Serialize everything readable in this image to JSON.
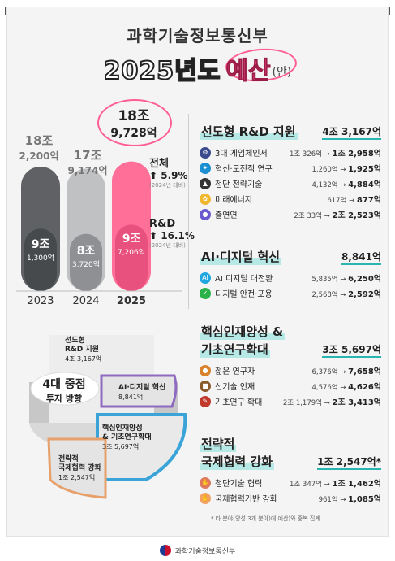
{
  "header": {
    "ministry": "과학기술정보통신부",
    "year_title": "2025년도",
    "budget_word": "예산",
    "draft": "(안)"
  },
  "chart_data": {
    "type": "bar",
    "categories": [
      "2023",
      "2024",
      "2025"
    ],
    "series": [
      {
        "values_label": [
          "18조 2,200억",
          "17조 9,174억",
          "18조 9,728억"
        ],
        "values": [
          18.22,
          17.9174,
          18.9728
        ]
      },
      {
        "values_label": [
          "9조 1,300억",
          "8조 3,720억",
          "9조 7,206억"
        ],
        "values": [
          9.13,
          8.372,
          9.7206
        ]
      }
    ],
    "colors": [
      "#5f6164",
      "#c0c1c3",
      "#ff6f98"
    ]
  },
  "bars": [
    {
      "year": "2023",
      "top1": "18조",
      "top2": "2,200억",
      "in1": "9조",
      "in2": "1,300억"
    },
    {
      "year": "2024",
      "top1": "17조",
      "top2": "9,174억",
      "in1": "8조",
      "in2": "3,720억"
    },
    {
      "year": "2025",
      "top1": "18조",
      "top2": "9,728억",
      "in1": "9조",
      "in2": "7,206억"
    }
  ],
  "growth": {
    "total_label": "전체",
    "total_pct": "5.9%",
    "total_sub": "(2024년 대비)",
    "rd_label": "R&D",
    "rd_pct": "16.1%",
    "rd_sub": "(2024년 대비)"
  },
  "sections": [
    {
      "title": "선도형 R&D 지원",
      "amount": "4조 3,167억",
      "items": [
        {
          "name": "3대 게임체인저",
          "from": "1조 326억",
          "to": "1조 2,958억",
          "icon_color": "#3a4a8c"
        },
        {
          "name": "혁신·도전적 연구",
          "from": "1,260억",
          "to": "1,925억",
          "icon_color": "#1b8fd1"
        },
        {
          "name": "첨단 전략기술",
          "from": "4,132억",
          "to": "4,884억",
          "icon_color": "#333333"
        },
        {
          "name": "미래에너지",
          "from": "617억",
          "to": "877억",
          "icon_color": "#f0b82e"
        },
        {
          "name": "출연연",
          "from": "2조 33억",
          "to": "2조 2,523억",
          "icon_color": "#6a5acd"
        }
      ]
    },
    {
      "title": "AI·디지털 혁신",
      "amount": "8,841억",
      "items": [
        {
          "name": "AI 디지털 대전환",
          "from": "5,835억",
          "to": "6,250억",
          "icon_color": "#1fa7e0"
        },
        {
          "name": "디지털 안전·포용",
          "from": "2,568억",
          "to": "2,592억",
          "icon_color": "#2bb34a"
        }
      ]
    },
    {
      "title_line1": "핵심인재양성 &",
      "title_line2": "기초연구확대",
      "amount": "3조 5,697억",
      "items": [
        {
          "name": "젊은 연구자",
          "from": "6,376억",
          "to": "7,658억",
          "icon_color": "#d9822b"
        },
        {
          "name": "신기술 인재",
          "from": "4,576억",
          "to": "4,626억",
          "icon_color": "#8b5a2b"
        },
        {
          "name": "기초연구 확대",
          "from": "2조 1,179억",
          "to": "2조 3,413억",
          "icon_color": "#c0392b"
        }
      ]
    },
    {
      "title_line1": "전략적",
      "title_line2": "국제협력 강화",
      "amount": "1조 2,547억*",
      "items": [
        {
          "name": "첨단기술 협력",
          "from": "1조 347억",
          "to": "1조 1,462억",
          "icon_color": "#e07a5f"
        },
        {
          "name": "국제협력기반 강화",
          "from": "961억",
          "to": "1,085억",
          "icon_color": "#f4a261"
        }
      ]
    }
  ],
  "pie": {
    "center_line1": "4대 중점",
    "center_line2": "투자 방향",
    "slices": [
      {
        "l1": "선도형",
        "l2": "R&D 지원",
        "amt": "4조 3,167억"
      },
      {
        "l1": "AI·디지털 혁신",
        "l2": "",
        "amt": "8,841억"
      },
      {
        "l1": "핵심인재양성",
        "l2": "& 기초연구확대",
        "amt": "3조 5,697억"
      },
      {
        "l1": "전략적",
        "l2": "국제협력 강화",
        "amt": "1조 2,547억"
      }
    ]
  },
  "footnote": "* 타 분야(양성 3개 분야)에 예산)와 중복 집계",
  "footer": "과학기술정보통신부"
}
